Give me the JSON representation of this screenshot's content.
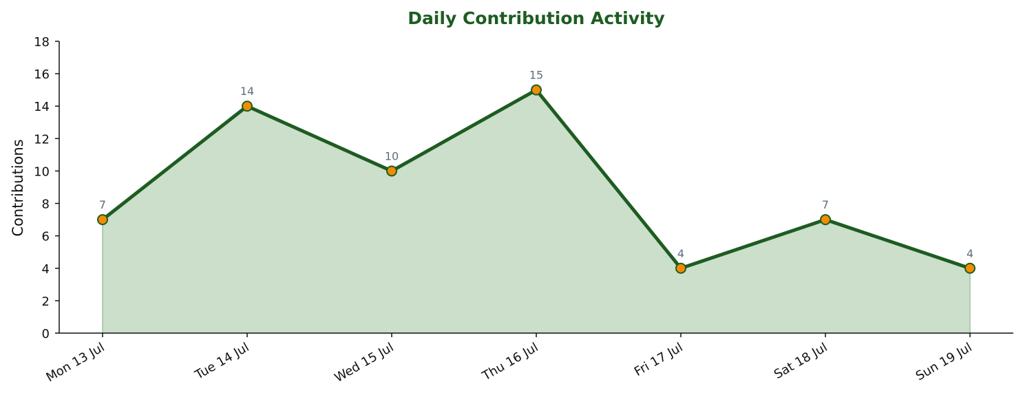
{
  "chart_data": {
    "type": "area",
    "title": "Daily Contribution Activity",
    "xlabel": "",
    "ylabel": "Contributions",
    "categories": [
      "Mon 13 Jul",
      "Tue 14 Jul",
      "Wed 15 Jul",
      "Thu 16 Jul",
      "Fri 17 Jul",
      "Sat 18 Jul",
      "Sun 19 Jul"
    ],
    "series": [
      {
        "values": [
          7,
          14,
          10,
          15,
          4,
          7,
          4
        ]
      }
    ],
    "ylim": [
      0,
      18
    ],
    "yticks": [
      0,
      2,
      4,
      6,
      8,
      10,
      12,
      14,
      16,
      18
    ],
    "grid": false,
    "legend": "none",
    "data_labels": true
  },
  "colors": {
    "title": "#1e5c21",
    "line": "#1e5c21",
    "fill": "#cbdfcb",
    "fill_edge": "#9cc49c",
    "marker_fill": "#f28c00",
    "marker_edge": "#1e5c21",
    "data_label": "#5a6e7e",
    "axis": "#111111"
  }
}
